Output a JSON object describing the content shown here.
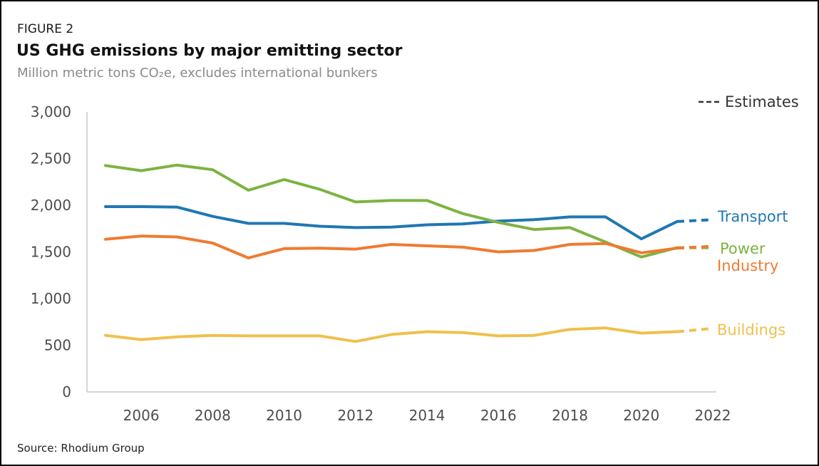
{
  "figure_label": "FIGURE 2",
  "source": "Source: Rhodium Group",
  "chart_data": {
    "type": "line",
    "title": "US GHG emissions by major emitting sector",
    "subtitle": "Million metric tons CO₂e, excludes international bunkers",
    "xlabel": "",
    "ylabel": "",
    "xlim": [
      2005,
      2022
    ],
    "ylim": [
      0,
      3000
    ],
    "x_ticks": [
      "2006",
      "2008",
      "2010",
      "2012",
      "2014",
      "2016",
      "2018",
      "2020",
      "2022"
    ],
    "y_ticks": [
      "0",
      "500",
      "1,000",
      "1,500",
      "2,000",
      "2,500",
      "3,000"
    ],
    "legend": "top-right",
    "legend_label": "Estimates",
    "grid": false,
    "x": [
      2005,
      2006,
      2007,
      2008,
      2009,
      2010,
      2011,
      2012,
      2013,
      2014,
      2015,
      2016,
      2017,
      2018,
      2019,
      2020,
      2021
    ],
    "estimate_x": [
      2021,
      2022
    ],
    "series": [
      {
        "name": "Transport",
        "color": "#1f77b4",
        "values": [
          1985,
          1985,
          1980,
          1880,
          1805,
          1805,
          1775,
          1760,
          1765,
          1790,
          1800,
          1830,
          1845,
          1875,
          1875,
          1640,
          1825
        ],
        "estimate": [
          1825,
          1845
        ]
      },
      {
        "name": "Power",
        "color": "#7cb342",
        "values": [
          2425,
          2370,
          2430,
          2380,
          2160,
          2275,
          2170,
          2035,
          2050,
          2050,
          1910,
          1815,
          1740,
          1760,
          1605,
          1445,
          1545
        ],
        "estimate": [
          1545,
          1545
        ]
      },
      {
        "name": "Industry",
        "color": "#ee7b30",
        "values": [
          1635,
          1670,
          1660,
          1595,
          1435,
          1535,
          1540,
          1530,
          1580,
          1565,
          1550,
          1500,
          1515,
          1580,
          1590,
          1490,
          1540
        ],
        "estimate": [
          1540,
          1560
        ]
      },
      {
        "name": "Buildings",
        "color": "#f0c04d",
        "values": [
          605,
          560,
          590,
          605,
          600,
          600,
          600,
          540,
          615,
          645,
          635,
          600,
          605,
          670,
          685,
          630,
          645
        ],
        "estimate": [
          645,
          680
        ]
      }
    ]
  }
}
